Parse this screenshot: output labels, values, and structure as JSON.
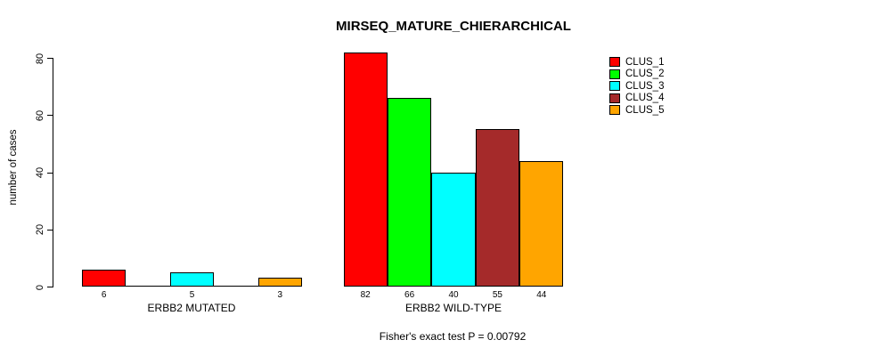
{
  "chart_data": {
    "type": "bar",
    "title": "MIRSEQ_MATURE_CHIERARCHICAL",
    "ylabel": "number of cases",
    "xlabel": "",
    "ylim": [
      0,
      80
    ],
    "yticks": [
      0,
      20,
      40,
      60,
      80
    ],
    "grid": false,
    "legend_position": "top-right",
    "groups": [
      "ERBB2 MUTATED",
      "ERBB2 WILD-TYPE"
    ],
    "series": [
      {
        "name": "CLUS_1",
        "color": "#FF0000",
        "values": [
          6,
          82
        ]
      },
      {
        "name": "CLUS_2",
        "color": "#00FF00",
        "values": [
          0,
          66
        ]
      },
      {
        "name": "CLUS_3",
        "color": "#00FFFF",
        "values": [
          5,
          40
        ]
      },
      {
        "name": "CLUS_4",
        "color": "#A52A2A",
        "values": [
          0,
          55
        ]
      },
      {
        "name": "CLUS_5",
        "color": "#FFA500",
        "values": [
          3,
          44
        ]
      }
    ],
    "bar_labels": [
      [
        "6",
        "",
        "5",
        "",
        "3"
      ],
      [
        "82",
        "66",
        "40",
        "55",
        "44"
      ]
    ],
    "annotation": "Fisher's exact test P = 0.00792"
  },
  "legend": {
    "items": [
      {
        "label": "CLUS_1",
        "color": "#FF0000"
      },
      {
        "label": "CLUS_2",
        "color": "#00FF00"
      },
      {
        "label": "CLUS_3",
        "color": "#00FFFF"
      },
      {
        "label": "CLUS_4",
        "color": "#A52A2A"
      },
      {
        "label": "CLUS_5",
        "color": "#FFA500"
      }
    ]
  }
}
